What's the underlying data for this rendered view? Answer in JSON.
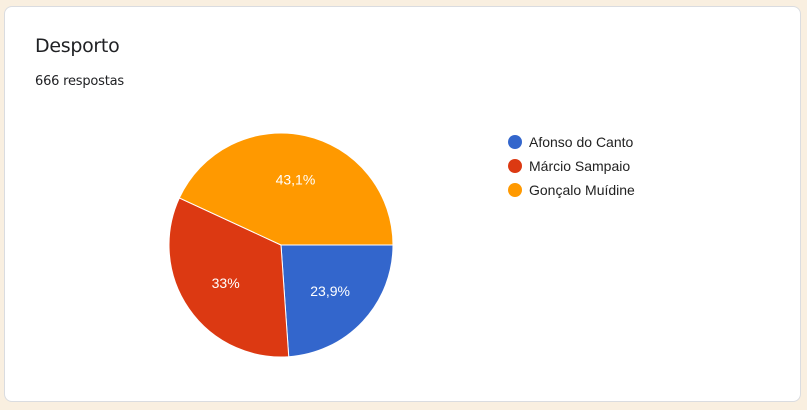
{
  "card": {
    "title": "Desporto",
    "responses": "666 respostas"
  },
  "chart_data": {
    "type": "pie",
    "categories": [
      "Afonso do Canto",
      "Márcio Sampaio",
      "Gonçalo Muídine"
    ],
    "values": [
      23.9,
      33,
      43.1
    ],
    "labels": [
      "23,9%",
      "33%",
      "43,1%"
    ],
    "colors": [
      "#3366cc",
      "#dc3912",
      "#ff9900"
    ],
    "start_angle": "3 o'clock, clockwise",
    "legend_position": "right"
  }
}
